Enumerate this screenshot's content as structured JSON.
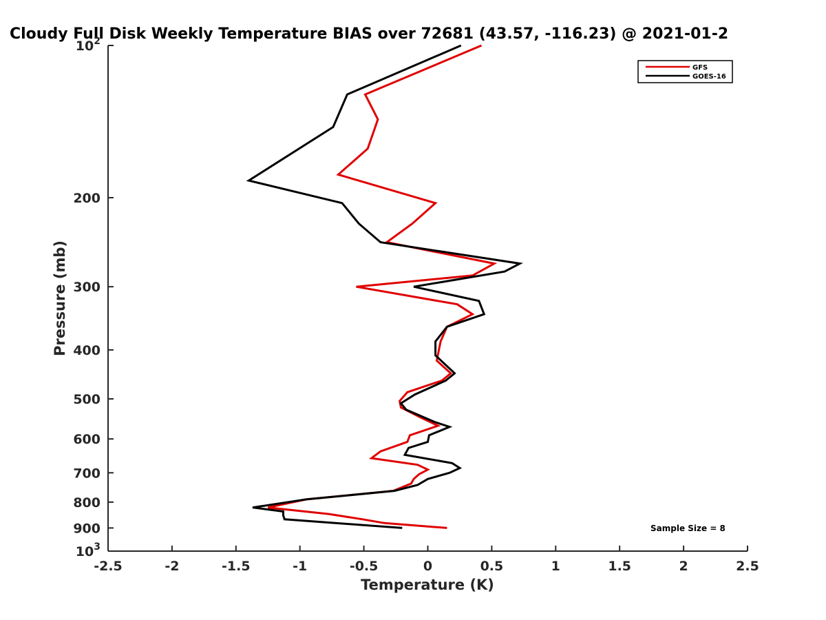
{
  "chart_data": {
    "type": "line",
    "title": "Cloudy Full Disk Weekly Temperature BIAS over 72681 (43.57, -116.23) @ 2021-01-2",
    "xlabel": "Temperature (K)",
    "ylabel": "Pressure (mb)",
    "xlim": [
      -2.5,
      2.5
    ],
    "ylim": [
      100,
      1000
    ],
    "y_scale": "log",
    "y_reversed": true,
    "grid": false,
    "legend_position": "top-right",
    "xticks": [
      -2.5,
      -2,
      -1.5,
      -1,
      -0.5,
      0,
      0.5,
      1,
      1.5,
      2,
      2.5
    ],
    "xtick_labels": [
      "-2.5",
      "-2",
      "-1.5",
      "-1",
      "-0.5",
      "0",
      "0.5",
      "1",
      "1.5",
      "2",
      "2.5"
    ],
    "yticks": [
      {
        "value": 100,
        "base": "10",
        "exp": "2"
      },
      {
        "value": 200,
        "label": "200"
      },
      {
        "value": 300,
        "label": "300"
      },
      {
        "value": 400,
        "label": "400"
      },
      {
        "value": 500,
        "label": "500"
      },
      {
        "value": 600,
        "label": "600"
      },
      {
        "value": 700,
        "label": "700"
      },
      {
        "value": 800,
        "label": "800"
      },
      {
        "value": 900,
        "label": "900"
      },
      {
        "value": 1000,
        "base": "10",
        "exp": "3"
      }
    ],
    "series": [
      {
        "name": "GFS",
        "color": "#e00000",
        "points": [
          [
            0.42,
            100
          ],
          [
            -0.49,
            125
          ],
          [
            -0.39,
            140
          ],
          [
            -0.47,
            160
          ],
          [
            -0.7,
            180
          ],
          [
            0.06,
            205
          ],
          [
            -0.12,
            225
          ],
          [
            -0.32,
            245
          ],
          [
            0.52,
            270
          ],
          [
            0.35,
            285
          ],
          [
            -0.56,
            300
          ],
          [
            0.23,
            325
          ],
          [
            0.35,
            340
          ],
          [
            0.15,
            360
          ],
          [
            0.1,
            385
          ],
          [
            0.07,
            420
          ],
          [
            0.18,
            445
          ],
          [
            0.11,
            460
          ],
          [
            -0.16,
            485
          ],
          [
            -0.22,
            505
          ],
          [
            -0.21,
            520
          ],
          [
            -0.05,
            545
          ],
          [
            0.08,
            565
          ],
          [
            -0.14,
            590
          ],
          [
            -0.16,
            608
          ],
          [
            -0.37,
            635
          ],
          [
            -0.44,
            655
          ],
          [
            -0.08,
            675
          ],
          [
            0.0,
            690
          ],
          [
            -0.07,
            705
          ],
          [
            -0.11,
            720
          ],
          [
            -0.13,
            735
          ],
          [
            -0.27,
            760
          ],
          [
            -0.95,
            790
          ],
          [
            -1.25,
            820
          ],
          [
            -0.77,
            845
          ],
          [
            -0.51,
            865
          ],
          [
            -0.34,
            880
          ],
          [
            0.15,
            900
          ]
        ]
      },
      {
        "name": "GOES-16",
        "color": "#000000",
        "points": [
          [
            0.26,
            100
          ],
          [
            -0.63,
            125
          ],
          [
            -0.74,
            145
          ],
          [
            -1.4,
            185
          ],
          [
            -0.67,
            205
          ],
          [
            -0.54,
            225
          ],
          [
            -0.37,
            245
          ],
          [
            0.72,
            270
          ],
          [
            0.6,
            280
          ],
          [
            -0.11,
            300
          ],
          [
            0.4,
            320
          ],
          [
            0.44,
            340
          ],
          [
            0.15,
            360
          ],
          [
            0.06,
            385
          ],
          [
            0.06,
            410
          ],
          [
            0.21,
            445
          ],
          [
            0.14,
            460
          ],
          [
            -0.1,
            490
          ],
          [
            -0.21,
            510
          ],
          [
            -0.17,
            525
          ],
          [
            0.05,
            555
          ],
          [
            0.17,
            568
          ],
          [
            0.01,
            590
          ],
          [
            0.0,
            608
          ],
          [
            -0.15,
            625
          ],
          [
            -0.18,
            645
          ],
          [
            0.19,
            670
          ],
          [
            0.25,
            685
          ],
          [
            0.17,
            700
          ],
          [
            0.0,
            720
          ],
          [
            -0.08,
            740
          ],
          [
            -0.26,
            760
          ],
          [
            -0.95,
            790
          ],
          [
            -1.37,
            820
          ],
          [
            -1.13,
            835
          ],
          [
            -1.13,
            850
          ],
          [
            -1.12,
            865
          ],
          [
            -0.2,
            900
          ]
        ]
      }
    ],
    "annotation": "Sample Size = 8"
  }
}
